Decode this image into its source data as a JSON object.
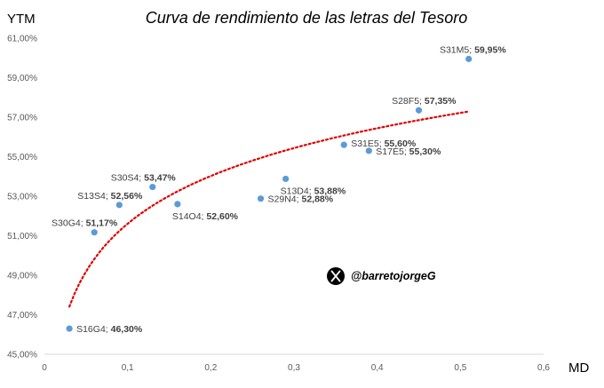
{
  "chart_data": {
    "type": "scatter",
    "title": "Curva de rendimiento de las letras del Tesoro",
    "xlabel": "MD",
    "ylabel": "YTM",
    "xlim": [
      0,
      0.6
    ],
    "ylim": [
      45,
      61
    ],
    "x_ticks": [
      "0",
      "0,1",
      "0,2",
      "0,3",
      "0,4",
      "0,5",
      "0,6"
    ],
    "y_ticks": [
      "45,00%",
      "47,00%",
      "49,00%",
      "51,00%",
      "53,00%",
      "55,00%",
      "57,00%",
      "59,00%",
      "61,00%"
    ],
    "grid": false,
    "series": [
      {
        "points": [
          {
            "name": "S16G4",
            "value_label": "46,30%",
            "x": 0.03,
            "y": 46.3
          },
          {
            "name": "S30G4",
            "value_label": "51,17%",
            "x": 0.06,
            "y": 51.17
          },
          {
            "name": "S13S4",
            "value_label": "52,56%",
            "x": 0.09,
            "y": 52.56
          },
          {
            "name": "S30S4",
            "value_label": "53,47%",
            "x": 0.13,
            "y": 53.47
          },
          {
            "name": "S14O4",
            "value_label": "52,60%",
            "x": 0.16,
            "y": 52.6
          },
          {
            "name": "S29N4",
            "value_label": "52,88%",
            "x": 0.26,
            "y": 52.88
          },
          {
            "name": "S13D4",
            "value_label": "53,88%",
            "x": 0.29,
            "y": 53.88
          },
          {
            "name": "S31E5",
            "value_label": "55,60%",
            "x": 0.36,
            "y": 55.6
          },
          {
            "name": "S17E5",
            "value_label": "55,30%",
            "x": 0.39,
            "y": 55.3
          },
          {
            "name": "S28F5",
            "value_label": "57,35%",
            "x": 0.45,
            "y": 57.35
          },
          {
            "name": "S31M5",
            "value_label": "59,95%",
            "x": 0.51,
            "y": 59.95
          }
        ]
      }
    ],
    "trendline": {
      "type": "logarithmic",
      "style": "dotted",
      "x_range": [
        0.03,
        0.51
      ]
    },
    "watermark": "@barretojorgeG"
  },
  "colors": {
    "marker": "#5b9bd5",
    "trendline": "#e00000",
    "text": "#404040",
    "axis": "#d9d9d9"
  }
}
